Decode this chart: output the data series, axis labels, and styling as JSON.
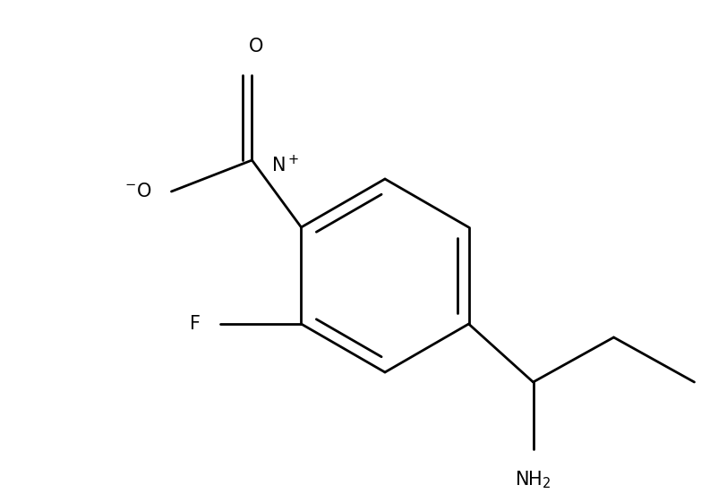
{
  "background_color": "#ffffff",
  "line_color": "#000000",
  "line_width": 2.0,
  "fig_width": 8.02,
  "fig_height": 5.61,
  "dpi": 100,
  "font_size": 15
}
